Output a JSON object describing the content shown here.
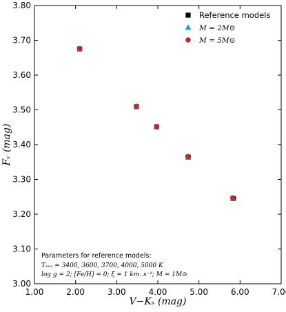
{
  "chart_data": {
    "type": "scatter",
    "title": "",
    "xlabel": "V−Kₛ (mag)",
    "ylabel": "Fᵥ (mag)",
    "xlim": [
      1.0,
      7.0
    ],
    "ylim": [
      3.0,
      3.8
    ],
    "x_ticks": [
      "1.00",
      "2.00",
      "3.00",
      "4.00",
      "5.00",
      "6.00",
      "7.00"
    ],
    "y_ticks": [
      "3.00",
      "3.10",
      "3.20",
      "3.30",
      "3.40",
      "3.50",
      "3.60",
      "3.70",
      "3.80"
    ],
    "grid": false,
    "legend_position": "top-right",
    "series": [
      {
        "name": "Reference models",
        "marker": "square",
        "color": "#000000",
        "x": [
          2.1,
          3.48,
          3.97,
          4.74,
          5.84
        ],
        "y": [
          3.675,
          3.509,
          3.451,
          3.364,
          3.245
        ]
      },
      {
        "name": "M = 2M⊙",
        "marker": "triangle",
        "color": "#1f9ae0",
        "x": [
          2.1,
          3.48,
          3.97,
          4.74,
          5.83
        ],
        "y": [
          3.675,
          3.509,
          3.451,
          3.364,
          3.245
        ]
      },
      {
        "name": "M = 5M⊙",
        "marker": "circle",
        "color": "#c0282d",
        "x": [
          2.1,
          3.48,
          3.97,
          4.73,
          5.82
        ],
        "y": [
          3.676,
          3.51,
          3.452,
          3.366,
          3.247
        ]
      }
    ],
    "annotation": {
      "title": "Parameters for reference models:",
      "lines": [
        "Tₑₒₒ = 3400, 3600, 3700, 4000, 5000 K",
        "log g = 2;  [Fe/H] = 0;  ξ = 1 km. s⁻¹;  M = 1M⊙"
      ]
    }
  }
}
